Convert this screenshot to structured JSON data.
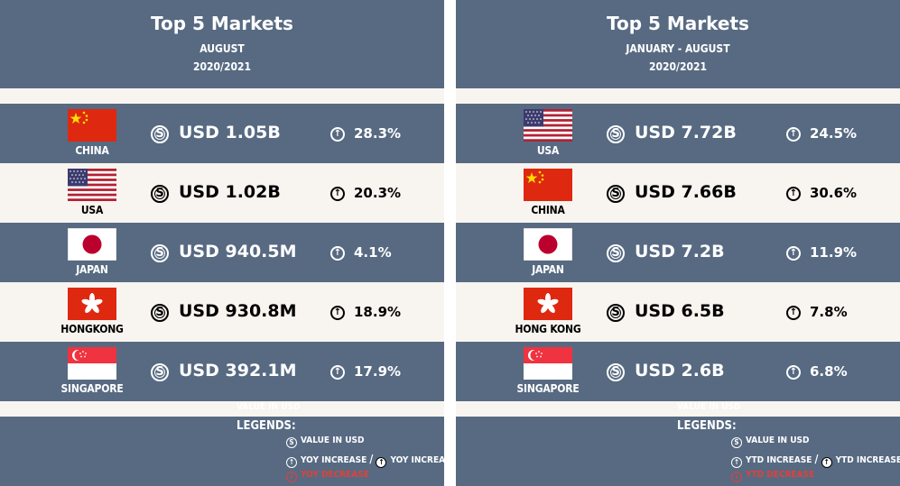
{
  "chart_data": [
    {
      "type": "table",
      "title": "Top 5 Markets",
      "subtitle_line1": "AUGUST",
      "subtitle_line2": "2020/2021",
      "categories": [
        "CHINA",
        "USA",
        "JAPAN",
        "HONGKONG",
        "SINGAPORE"
      ],
      "value_labels": [
        "USD 1.05B",
        "USD 1.02B",
        "USD 940.5M",
        "USD 930.8M",
        "USD 392.1M"
      ],
      "values_usd": [
        1050000000,
        1020000000,
        940500000,
        930800000,
        392100000
      ],
      "growth_labels": [
        "28.3%",
        "20.3%",
        "4.1%",
        "18.9%",
        "17.9%"
      ],
      "growth_pct": [
        28.3,
        20.3,
        4.1,
        18.9,
        17.9
      ],
      "ghost_label": "VALUE IN USD",
      "legend": {
        "title": "LEGENDS:",
        "value": "VALUE IN USD",
        "increase_a": "YOY INCREASE",
        "separator": "/",
        "increase_b": "YOY INCREASE",
        "decrease": "YOY DECREASE"
      }
    },
    {
      "type": "table",
      "title": "Top 5 Markets",
      "subtitle_line1": "JANUARY - AUGUST",
      "subtitle_line2": "2020/2021",
      "categories": [
        "USA",
        "CHINA",
        "JAPAN",
        "HONG KONG",
        "SINGAPORE"
      ],
      "value_labels": [
        "USD 7.72B",
        "USD 7.66B",
        "USD 7.2B",
        "USD 6.5B",
        "USD 2.6B"
      ],
      "values_usd": [
        7720000000,
        7660000000,
        7200000000,
        6500000000,
        2600000000
      ],
      "growth_labels": [
        "24.5%",
        "30.6%",
        "11.9%",
        "7.8%",
        "6.8%"
      ],
      "growth_pct": [
        24.5,
        30.6,
        11.9,
        7.8,
        6.8
      ],
      "ghost_label": "VALUE IN USD",
      "legend": {
        "title": "LEGENDS:",
        "value": "VALUE IN USD",
        "increase_a": "YTD INCREASE",
        "separator": "/",
        "increase_b": "YTD INCREASE",
        "decrease": "YTD DECREASE"
      }
    }
  ],
  "icons": {
    "value": "dollar-coin-icon",
    "increase": "arrow-up-circle-icon",
    "decrease": "arrow-down-circle-icon"
  },
  "flags": {
    "left": [
      "china-flag-icon",
      "usa-flag-icon",
      "japan-flag-icon",
      "hongkong-flag-icon",
      "singapore-flag-icon"
    ],
    "right": [
      "usa-flag-icon",
      "china-flag-icon",
      "japan-flag-icon",
      "hongkong-flag-icon",
      "singapore-flag-icon"
    ]
  },
  "colors": {
    "panel_blue": "#576a82",
    "panel_cream": "#f8f4ef",
    "decrease_red": "#e0413a"
  }
}
